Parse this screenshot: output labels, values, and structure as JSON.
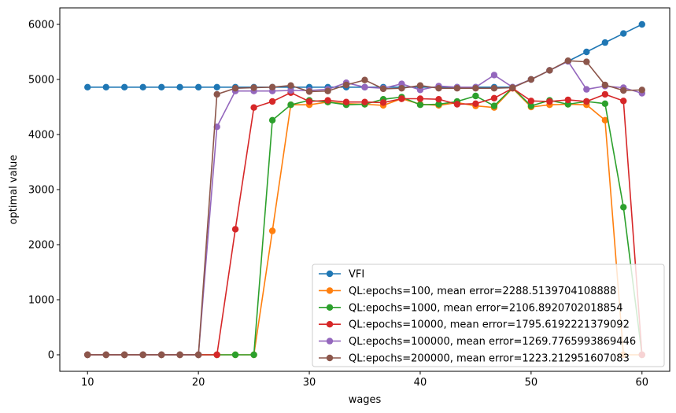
{
  "chart_data": {
    "type": "line",
    "title": "",
    "xlabel": "wages",
    "ylabel": "optimal value",
    "xlim": [
      7.5,
      62.5
    ],
    "ylim": [
      -300,
      6300
    ],
    "xticks": [
      10,
      20,
      30,
      40,
      50,
      60
    ],
    "yticks": [
      0,
      1000,
      2000,
      3000,
      4000,
      5000,
      6000
    ],
    "grid": false,
    "legend_position": "lower-right",
    "x": [
      10.0,
      11.67,
      13.33,
      15.0,
      16.67,
      18.33,
      20.0,
      21.67,
      23.33,
      25.0,
      26.67,
      28.33,
      30.0,
      31.67,
      33.33,
      35.0,
      36.67,
      38.33,
      40.0,
      41.67,
      43.33,
      45.0,
      46.67,
      48.33,
      50.0,
      51.67,
      53.33,
      55.0,
      56.67,
      58.33,
      60.0
    ],
    "series": [
      {
        "name": "VFI",
        "color": "#1f77b4",
        "values": [
          4860,
          4860,
          4860,
          4860,
          4860,
          4860,
          4860,
          4860,
          4860,
          4860,
          4860,
          4860,
          4860,
          4860,
          4860,
          4860,
          4860,
          4860,
          4860,
          4860,
          4860,
          4860,
          4860,
          4860,
          5000,
          5165,
          5330,
          5500,
          5670,
          5835,
          6000
        ]
      },
      {
        "name": "QL:epochs=100, mean error=2288.5139704108888",
        "color": "#ff7f0e",
        "values": [
          0,
          0,
          0,
          0,
          0,
          0,
          0,
          0,
          0,
          0,
          2250,
          4540,
          4540,
          4590,
          4560,
          4550,
          4530,
          4650,
          4550,
          4530,
          4580,
          4520,
          4490,
          4840,
          4500,
          4540,
          4550,
          4540,
          4260,
          0,
          0
        ]
      },
      {
        "name": "QL:epochs=1000, mean error=2106.8920702018854",
        "color": "#2ca02c",
        "values": [
          0,
          0,
          0,
          0,
          0,
          0,
          0,
          0,
          0,
          0,
          4260,
          4540,
          4620,
          4590,
          4540,
          4550,
          4640,
          4680,
          4540,
          4550,
          4600,
          4700,
          4520,
          4850,
          4520,
          4620,
          4550,
          4600,
          4560,
          2680,
          0
        ]
      },
      {
        "name": "QL:epochs=10000, mean error=1795.6192221379092",
        "color": "#d62728",
        "values": [
          0,
          0,
          0,
          0,
          0,
          0,
          0,
          0,
          2280,
          4490,
          4600,
          4760,
          4600,
          4620,
          4590,
          4590,
          4580,
          4650,
          4650,
          4640,
          4550,
          4560,
          4660,
          4840,
          4610,
          4600,
          4630,
          4600,
          4730,
          4610,
          0
        ]
      },
      {
        "name": "QL:epochs=100000, mean error=1269.7765993869446",
        "color": "#9467bd",
        "values": [
          0,
          0,
          0,
          0,
          0,
          0,
          0,
          4140,
          4790,
          4790,
          4790,
          4800,
          4800,
          4820,
          4940,
          4860,
          4840,
          4920,
          4810,
          4880,
          4860,
          4860,
          5080,
          4860,
          5000,
          5165,
          5330,
          4820,
          4880,
          4850,
          4750
        ]
      },
      {
        "name": "QL:epochs=200000, mean error=1223.212951607083",
        "color": "#8c564b",
        "values": [
          0,
          0,
          0,
          0,
          0,
          0,
          0,
          4730,
          4840,
          4850,
          4860,
          4890,
          4780,
          4790,
          4900,
          4990,
          4830,
          4840,
          4890,
          4840,
          4840,
          4840,
          4840,
          4850,
          5000,
          5165,
          5340,
          5320,
          4900,
          4800,
          4810
        ]
      }
    ]
  }
}
